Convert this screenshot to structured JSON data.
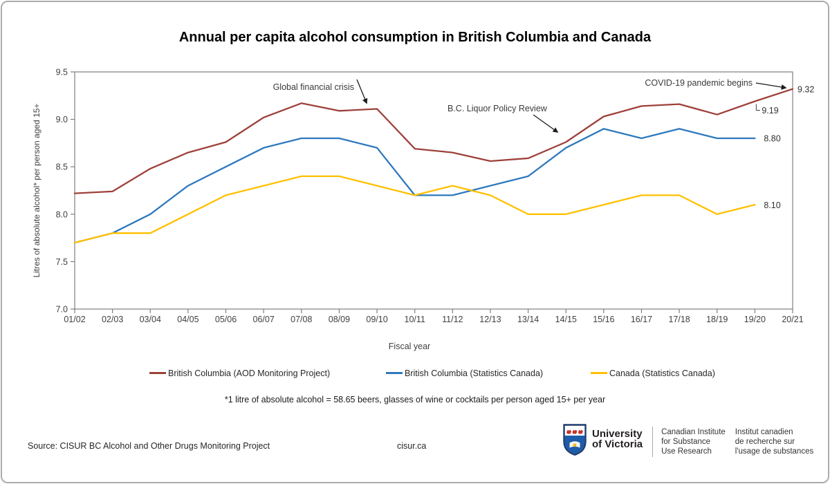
{
  "chart_data": {
    "type": "line",
    "title": "Annual per capita alcohol consumption in British Columbia and Canada",
    "xlabel": "Fiscal year",
    "ylabel": "Litres of absolute alcohol* per person aged 15+",
    "ylim": [
      7.0,
      9.5
    ],
    "yticks": [
      "7.0",
      "7.5",
      "8.0",
      "8.5",
      "9.0",
      "9.5"
    ],
    "grid": false,
    "legend_position": "bottom",
    "categories": [
      "01/02",
      "02/03",
      "03/04",
      "04/05",
      "05/06",
      "06/07",
      "07/08",
      "08/09",
      "09/10",
      "10/11",
      "11/12",
      "12/13",
      "13/14",
      "14/15",
      "15/16",
      "16/17",
      "17/18",
      "18/19",
      "19/20",
      "20/21"
    ],
    "series": [
      {
        "name": "British Columbia (AOD Monitoring Project)",
        "color": "#9E403A",
        "values": [
          8.22,
          8.24,
          8.48,
          8.65,
          8.76,
          9.02,
          9.17,
          9.09,
          9.11,
          8.69,
          8.65,
          8.56,
          8.59,
          8.76,
          9.03,
          9.14,
          9.16,
          9.05,
          9.19,
          9.32
        ]
      },
      {
        "name": "British Columbia (Statistics Canada)",
        "color": "#2E79BD",
        "values": [
          7.7,
          7.8,
          8.0,
          8.3,
          8.5,
          8.7,
          8.8,
          8.8,
          8.7,
          8.2,
          8.2,
          8.3,
          8.4,
          8.7,
          8.9,
          8.8,
          8.9,
          8.8,
          8.8,
          null
        ]
      },
      {
        "name": "Canada (Statistics Canada)",
        "color": "#FFC000",
        "values": [
          7.7,
          7.8,
          7.8,
          8.0,
          8.2,
          8.3,
          8.4,
          8.4,
          8.3,
          8.2,
          8.3,
          8.2,
          8.0,
          8.0,
          8.1,
          8.2,
          8.2,
          8.0,
          8.1,
          null
        ]
      }
    ],
    "annotations": [
      {
        "text": "Global financial crisis"
      },
      {
        "text": "B.C. Liquor Policy Review"
      },
      {
        "text": "COVID-19 pandemic begins"
      }
    ],
    "point_labels": [
      {
        "text": "9.32",
        "series": 0,
        "category_index": 19,
        "style": "end"
      },
      {
        "text": "9.19",
        "series": 0,
        "category_index": 18,
        "style": "connector"
      },
      {
        "text": "8.80",
        "series": 1,
        "category_index": 18,
        "style": "end"
      },
      {
        "text": "8.10",
        "series": 2,
        "category_index": 18,
        "style": "end"
      }
    ]
  },
  "footnote": "*1 litre of absolute alcohol = 58.65 beers, glasses of wine or cocktails per person aged 15+ per year",
  "footer": {
    "source": "Source: CISUR BC Alcohol and Other Drugs Monitoring Project",
    "website": "cisur.ca",
    "university_name_line1": "University",
    "university_name_line2": "of Victoria",
    "institute_en": [
      "Canadian Institute",
      "for Substance",
      "Use Research"
    ],
    "institute_fr": [
      "Institut canadien",
      "de recherche sur",
      "l'usage de substances"
    ]
  }
}
